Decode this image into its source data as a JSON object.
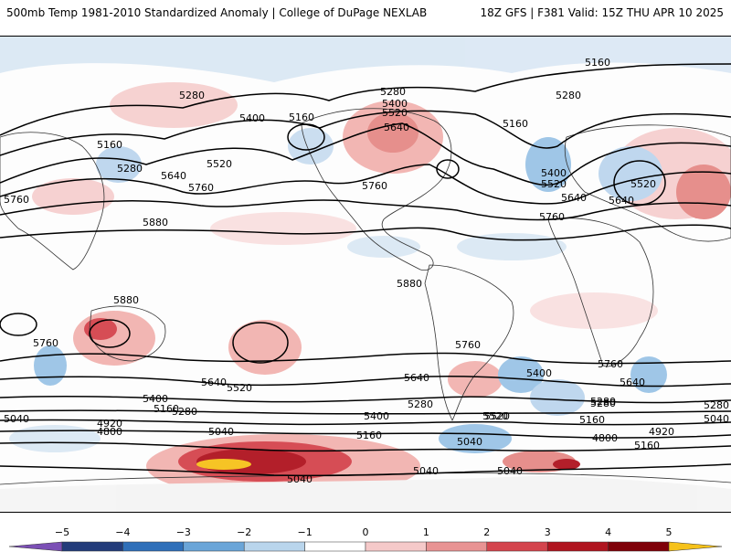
{
  "header": {
    "title_left": "500mb Temp 1981-2010 Standardized Anomaly | College of DuPage NEXLAB",
    "title_right": "18Z GFS | F381 Valid: 15Z THU APR 10 2025"
  },
  "map": {
    "contour_labels": [
      "5160",
      "5280",
      "5280",
      "5400",
      "5160",
      "5160",
      "5280",
      "5640",
      "5520",
      "5760",
      "5760",
      "5880",
      "5880",
      "5760",
      "5640",
      "5520",
      "5400",
      "5280",
      "5160",
      "5040",
      "4920",
      "4800",
      "5040",
      "5160",
      "5280",
      "5400",
      "5520",
      "5640",
      "5760",
      "5880",
      "5400",
      "5520",
      "5640",
      "5760",
      "5400",
      "5520",
      "5640",
      "5280",
      "5160",
      "5280",
      "5400",
      "5760",
      "5640",
      "5280",
      "5520",
      "5160",
      "5040",
      "4920",
      "4800",
      "5040",
      "5040",
      "5040",
      "5040",
      "5160",
      "5280",
      "5520",
      "5640",
      "5760"
    ]
  },
  "colorbar": {
    "ticks": [
      "−5",
      "−4",
      "−3",
      "−2",
      "−1",
      "0",
      "1",
      "2",
      "3",
      "4",
      "5"
    ],
    "colors": [
      "#7b4fb5",
      "#233c7a",
      "#2f6fb9",
      "#6aa5d8",
      "#b9d5ec",
      "#ffffff",
      "#f5c9c9",
      "#e89393",
      "#d4444d",
      "#b0141f",
      "#7f0008",
      "#f6c21a"
    ]
  }
}
